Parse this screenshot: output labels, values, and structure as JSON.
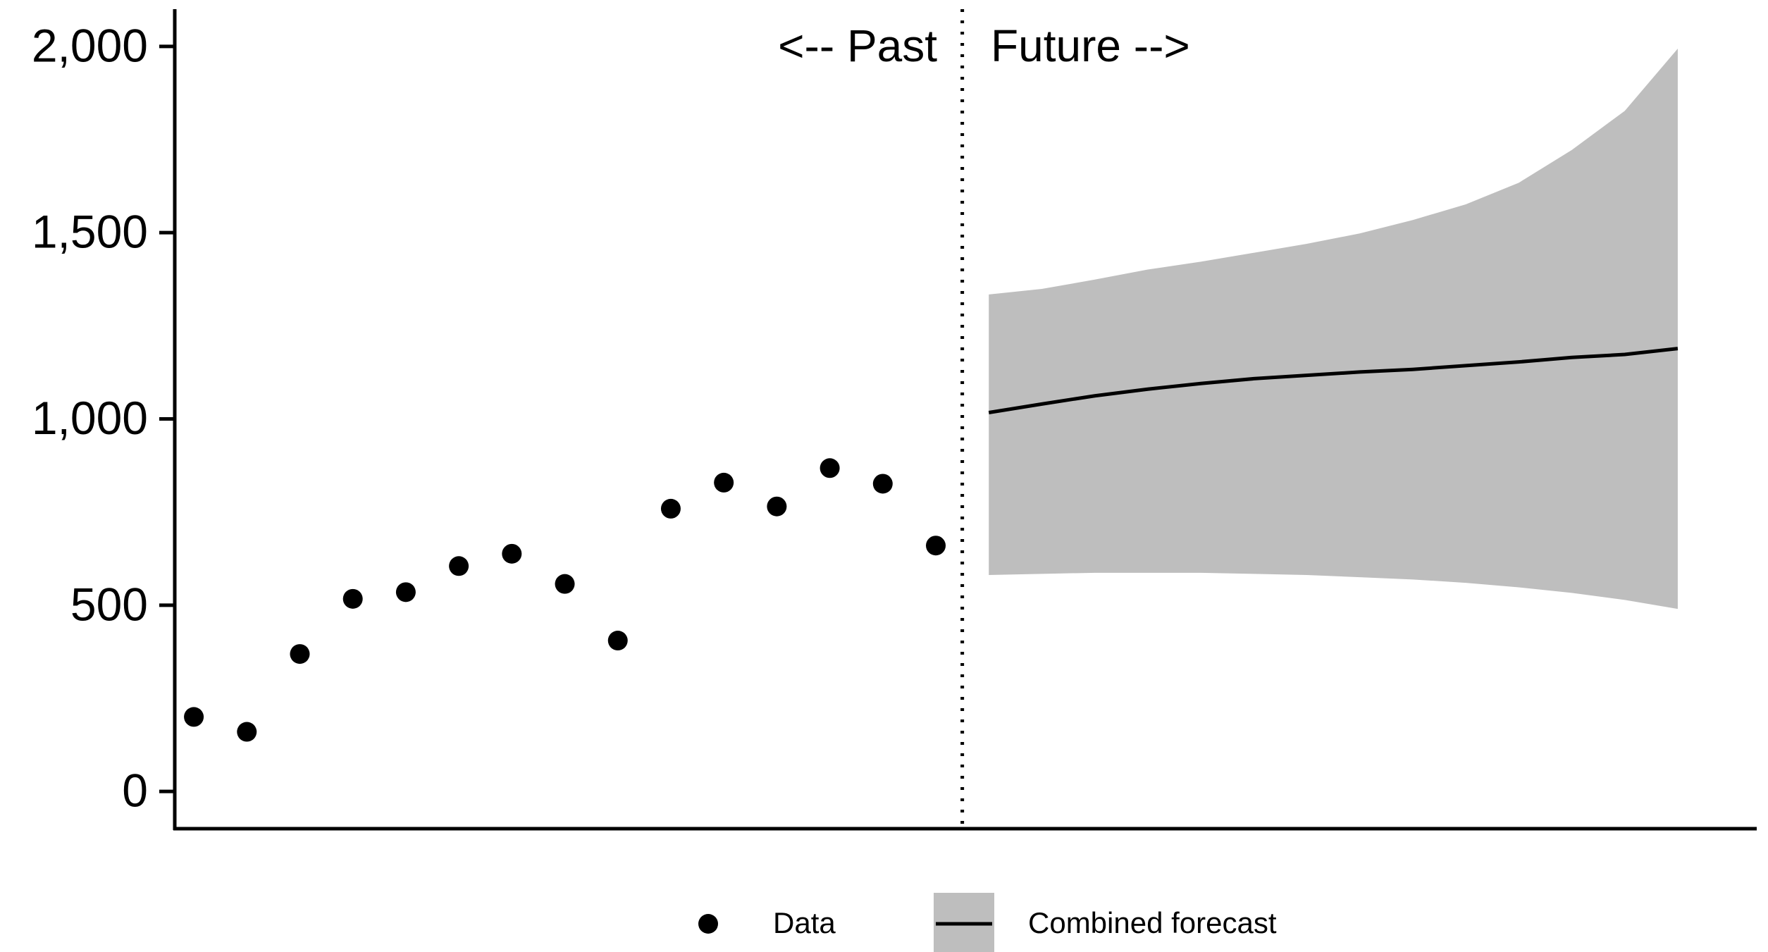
{
  "chart_data": {
    "type": "scatter",
    "annotations": [
      "<-- Past",
      "Future -->"
    ],
    "divider_x": 15.5,
    "xlim": [
      0.64,
      30.49
    ],
    "ylim": [
      -100,
      2100
    ],
    "yticks": [
      0,
      500,
      {
        "value": 1000,
        "label": "1,000"
      },
      {
        "value": 1500,
        "label": "1,500"
      },
      {
        "value": 2000,
        "label": "2,000"
      }
    ],
    "series": [
      {
        "name": "Data",
        "color": "#000000",
        "x": [
          1,
          2,
          3,
          4,
          5,
          6,
          7,
          8,
          9,
          10,
          11,
          12,
          13,
          14,
          15
        ],
        "values": [
          200,
          160,
          369,
          517,
          535,
          605,
          638,
          557,
          405,
          759,
          829,
          765,
          868,
          826,
          660
        ]
      },
      {
        "name": "Combined forecast",
        "color": "#000000",
        "band_color": "#bebebe",
        "x": [
          16,
          17,
          18,
          19,
          20,
          21,
          22,
          23,
          24,
          25,
          26,
          27,
          28,
          29
        ],
        "values": [
          1017,
          1040,
          1062,
          1080,
          1095,
          1108,
          1117,
          1126,
          1133,
          1143,
          1153,
          1165,
          1173,
          1189
        ],
        "upper": [
          1334,
          1349,
          1374,
          1401,
          1422,
          1446,
          1470,
          1498,
          1534,
          1576,
          1634,
          1722,
          1827,
          1994
        ],
        "lower": [
          581,
          584,
          587,
          587,
          587,
          584,
          581,
          575,
          569,
          560,
          548,
          533,
          514,
          490
        ]
      }
    ]
  }
}
